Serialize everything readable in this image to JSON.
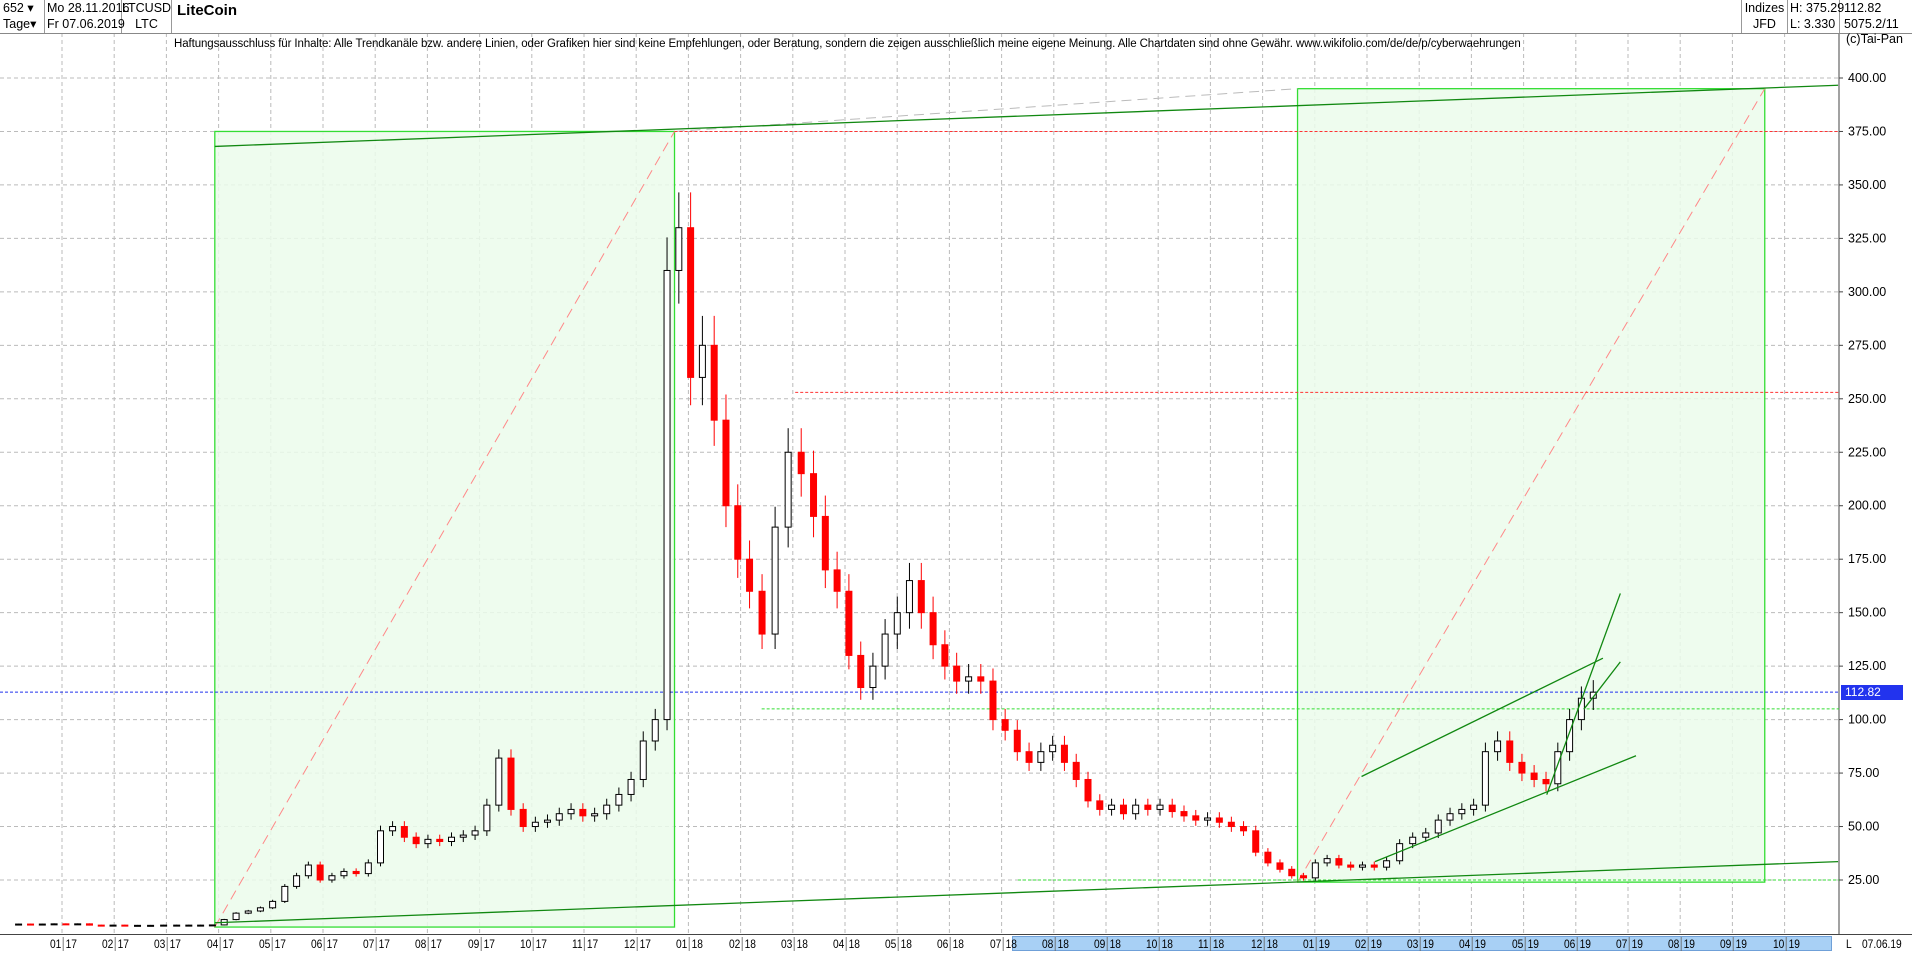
{
  "header": {
    "bar_count": "652",
    "interval": "Tage",
    "start_date": "Mo 28.11.2016",
    "end_date": "Fr 07.06.2019",
    "symbol": "LTCUSD",
    "symbol_short": "LTC",
    "title": "LiteCoin",
    "group": "Indizes",
    "source": "JFD",
    "high": "H: 375.29",
    "low": "L: 3.330",
    "last": "112.82",
    "extra": "5075.2/11",
    "copyright": "(c)Tai-Pan"
  },
  "disclaimer": "Haftungsausschluss für Inhalte: Alle Trendkanäle bzw. andere Linien, oder Grafiken hier sind keine Empfehlungen, oder Beratung, sondern die zeigen ausschließlich meine eigene Meinung. Alle Chartdaten sind ohne Gewähr.  www.wikifolio.com/de/de/p/cyberwaehrungen",
  "colors": {
    "up": "#000000",
    "down": "#ff0000",
    "box_fill": "#ebfbeb",
    "box_line": "#33dd33",
    "trend": "#118811",
    "price_line": "#2233ee",
    "resistance": "#ff3333",
    "support": "#33dd33",
    "grid": "#bbbbbb",
    "axis_band": "#a8d0f5"
  },
  "chart_data": {
    "type": "candlestick",
    "title": "LiteCoin",
    "ylim": [
      0,
      410
    ],
    "grid": true,
    "y_ticks": [
      "25.00",
      "50.00",
      "75.00",
      "100.00",
      "125.00",
      "150.00",
      "175.00",
      "200.00",
      "225.00",
      "250.00",
      "275.00",
      "300.00",
      "325.00",
      "350.00",
      "375.00",
      "400.00"
    ],
    "x_ticks": [
      {
        "m": "01",
        "y": "17"
      },
      {
        "m": "02",
        "y": "17"
      },
      {
        "m": "03",
        "y": "17"
      },
      {
        "m": "04",
        "y": "17"
      },
      {
        "m": "05",
        "y": "17"
      },
      {
        "m": "06",
        "y": "17"
      },
      {
        "m": "07",
        "y": "17"
      },
      {
        "m": "08",
        "y": "17"
      },
      {
        "m": "09",
        "y": "17"
      },
      {
        "m": "10",
        "y": "17"
      },
      {
        "m": "11",
        "y": "17"
      },
      {
        "m": "12",
        "y": "17"
      },
      {
        "m": "01",
        "y": "18"
      },
      {
        "m": "02",
        "y": "18"
      },
      {
        "m": "03",
        "y": "18"
      },
      {
        "m": "04",
        "y": "18"
      },
      {
        "m": "05",
        "y": "18"
      },
      {
        "m": "06",
        "y": "18"
      },
      {
        "m": "07",
        "y": "18"
      },
      {
        "m": "08",
        "y": "18"
      },
      {
        "m": "09",
        "y": "18"
      },
      {
        "m": "10",
        "y": "18"
      },
      {
        "m": "11",
        "y": "18"
      },
      {
        "m": "12",
        "y": "18"
      },
      {
        "m": "01",
        "y": "19"
      },
      {
        "m": "02",
        "y": "19"
      },
      {
        "m": "03",
        "y": "19"
      },
      {
        "m": "04",
        "y": "19"
      },
      {
        "m": "05",
        "y": "19"
      },
      {
        "m": "06",
        "y": "19"
      },
      {
        "m": "07",
        "y": "19"
      },
      {
        "m": "08",
        "y": "19"
      },
      {
        "m": "09",
        "y": "19"
      },
      {
        "m": "10",
        "y": "19"
      }
    ],
    "x_axis_end_marker": "L",
    "x_axis_last_date": "07.06.19",
    "last_price": 112.82,
    "dates": [
      "2016-11-28",
      "2016-12-05",
      "2016-12-12",
      "2016-12-19",
      "2016-12-26",
      "2017-01-02",
      "2017-01-09",
      "2017-01-16",
      "2017-01-23",
      "2017-01-30",
      "2017-02-06",
      "2017-02-13",
      "2017-02-20",
      "2017-02-27",
      "2017-03-06",
      "2017-03-13",
      "2017-03-20",
      "2017-03-27",
      "2017-04-03",
      "2017-04-10",
      "2017-04-17",
      "2017-04-24",
      "2017-05-01",
      "2017-05-08",
      "2017-05-15",
      "2017-05-22",
      "2017-05-29",
      "2017-06-05",
      "2017-06-12",
      "2017-06-19",
      "2017-06-26",
      "2017-07-03",
      "2017-07-10",
      "2017-07-17",
      "2017-07-24",
      "2017-07-31",
      "2017-08-07",
      "2017-08-14",
      "2017-08-21",
      "2017-08-28",
      "2017-09-04",
      "2017-09-11",
      "2017-09-18",
      "2017-09-25",
      "2017-10-02",
      "2017-10-09",
      "2017-10-16",
      "2017-10-23",
      "2017-10-30",
      "2017-11-06",
      "2017-11-13",
      "2017-11-20",
      "2017-11-27",
      "2017-12-04",
      "2017-12-11",
      "2017-12-18",
      "2017-12-25",
      "2018-01-01",
      "2018-01-08",
      "2018-01-15",
      "2018-01-22",
      "2018-01-29",
      "2018-02-05",
      "2018-02-12",
      "2018-02-19",
      "2018-02-26",
      "2018-03-05",
      "2018-03-12",
      "2018-03-19",
      "2018-03-26",
      "2018-04-02",
      "2018-04-09",
      "2018-04-16",
      "2018-04-23",
      "2018-04-30",
      "2018-05-07",
      "2018-05-14",
      "2018-05-21",
      "2018-05-28",
      "2018-06-04",
      "2018-06-11",
      "2018-06-18",
      "2018-06-25",
      "2018-07-02",
      "2018-07-09",
      "2018-07-16",
      "2018-07-23",
      "2018-07-30",
      "2018-08-06",
      "2018-08-13",
      "2018-08-20",
      "2018-08-27",
      "2018-09-03",
      "2018-09-10",
      "2018-09-17",
      "2018-09-24",
      "2018-10-01",
      "2018-10-08",
      "2018-10-15",
      "2018-10-22",
      "2018-10-29",
      "2018-11-05",
      "2018-11-12",
      "2018-11-19",
      "2018-11-26",
      "2018-12-03",
      "2018-12-10",
      "2018-12-17",
      "2018-12-24",
      "2018-12-31",
      "2019-01-07",
      "2019-01-14",
      "2019-01-21",
      "2019-01-28",
      "2019-02-04",
      "2019-02-11",
      "2019-02-18",
      "2019-02-25",
      "2019-03-04",
      "2019-03-11",
      "2019-03-18",
      "2019-03-25",
      "2019-04-01",
      "2019-04-08",
      "2019-04-15",
      "2019-04-22",
      "2019-04-29",
      "2019-05-06",
      "2019-05-13",
      "2019-05-20",
      "2019-05-27",
      "2019-06-03"
    ],
    "close": [
      4.4,
      4.3,
      4.4,
      4.5,
      4.4,
      4.5,
      3.9,
      3.8,
      3.9,
      3.8,
      3.8,
      3.8,
      3.9,
      3.9,
      3.9,
      3.9,
      4.0,
      6.5,
      9.5,
      10.5,
      12,
      15,
      22,
      27,
      32,
      25,
      27,
      29,
      28,
      33,
      48,
      50,
      45,
      42,
      44,
      43,
      45,
      46,
      48,
      60,
      82,
      58,
      50,
      52,
      53,
      56,
      58,
      55,
      56,
      60,
      65,
      72,
      90,
      100,
      310,
      330,
      260,
      275,
      240,
      200,
      175,
      160,
      140,
      190,
      225,
      215,
      195,
      170,
      160,
      130,
      115,
      125,
      140,
      150,
      165,
      150,
      135,
      125,
      118,
      120,
      118,
      100,
      95,
      85,
      80,
      85,
      88,
      80,
      72,
      62,
      58,
      60,
      56,
      60,
      58,
      60,
      57,
      55,
      53,
      54,
      52,
      50,
      48,
      38,
      33,
      30,
      27,
      26,
      33,
      35,
      32,
      31,
      32,
      31,
      34,
      42,
      45,
      47,
      53,
      56,
      58,
      60,
      85,
      90,
      80,
      75,
      72,
      70,
      85,
      100,
      110,
      112.82
    ],
    "annotations": {
      "boxes": [
        {
          "from": "2017-03-25",
          "to": "2017-12-19",
          "low": 3,
          "high": 375
        },
        {
          "from": "2018-12-17",
          "to": "2019-09-15",
          "low": 24,
          "high": 395
        }
      ],
      "trendlines": [
        {
          "from": [
            "2017-03-25",
            368
          ],
          "to": [
            "2019-10-28",
            396.6
          ]
        },
        {
          "from": [
            "2017-03-25",
            5
          ],
          "to": [
            "2019-10-28",
            33.6
          ]
        },
        {
          "from": [
            "2019-01-24",
            73.4
          ],
          "to": [
            "2019-06-12",
            128.7
          ]
        },
        {
          "from": [
            "2019-02-01",
            33.6
          ],
          "to": [
            "2019-07-01",
            83.1
          ]
        },
        {
          "from": [
            "2019-05-10",
            64.9
          ],
          "to": [
            "2019-06-22",
            159
          ]
        },
        {
          "from": [
            "2019-06-01",
            104.8
          ],
          "to": [
            "2019-06-22",
            127
          ]
        }
      ],
      "diagonals": [
        {
          "from": [
            "2017-03-25",
            3
          ],
          "to": [
            "2017-12-19",
            375
          ]
        },
        {
          "from": [
            "2018-12-17",
            24
          ],
          "to": [
            "2019-09-15",
            395
          ]
        }
      ],
      "gray_dashed": [
        {
          "from": [
            "2017-12-19",
            375
          ],
          "to": [
            "2018-12-17",
            395
          ]
        }
      ],
      "resistance": [
        {
          "from": "2017-12-19",
          "price": 375
        },
        {
          "from": "2018-02-26",
          "price": 253
        }
      ],
      "support": [
        {
          "from": "2018-02-08",
          "price": 105
        },
        {
          "from": "2018-07-06",
          "price": 25
        }
      ]
    }
  }
}
